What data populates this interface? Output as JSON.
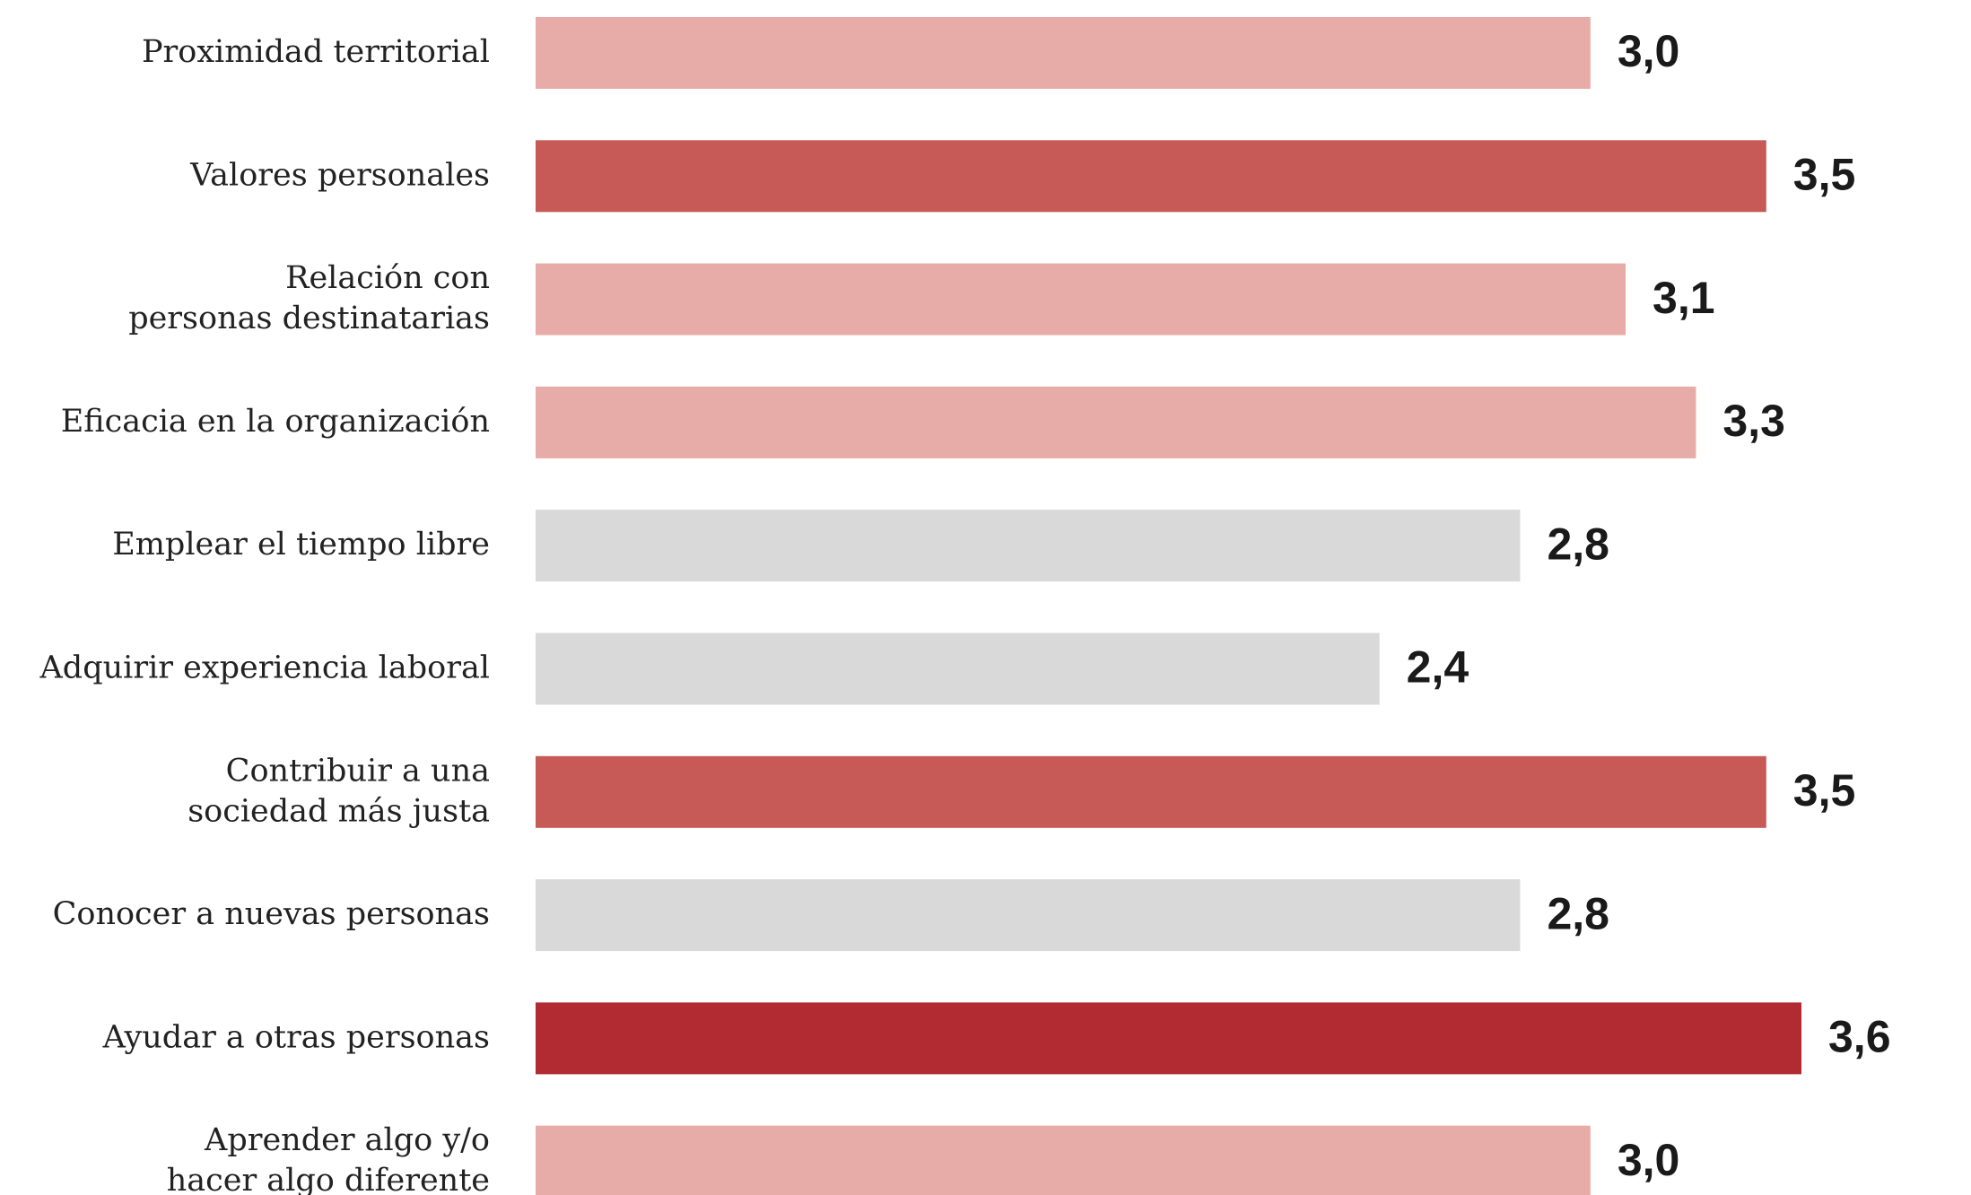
{
  "chart_data": {
    "type": "bar",
    "orientation": "horizontal",
    "categories": [
      [
        "Proximidad territorial"
      ],
      [
        "Valores personales"
      ],
      [
        "Relación con",
        "personas destinatarias"
      ],
      [
        "Eficacia en la organización"
      ],
      [
        "Emplear el tiempo libre"
      ],
      [
        "Adquirir experiencia laboral"
      ],
      [
        "Contribuir a una",
        "sociedad más justa"
      ],
      [
        "Conocer a nuevas personas"
      ],
      [
        "Ayudar a otras personas"
      ],
      [
        "Aprender algo y/o",
        "hacer algo diferente"
      ]
    ],
    "values": [
      3.0,
      3.5,
      3.1,
      3.3,
      2.8,
      2.4,
      3.5,
      2.8,
      3.6,
      3.0
    ],
    "value_labels": [
      "3,0",
      "3,5",
      "3,1",
      "3,3",
      "2,8",
      "2,4",
      "3,5",
      "2,8",
      "3,6",
      "3,0"
    ],
    "bar_colors": [
      "#e8aca8",
      "#c75a56",
      "#e8aca8",
      "#e8aca8",
      "#d9d9d9",
      "#d9d9d9",
      "#c75a56",
      "#d9d9d9",
      "#b22a32",
      "#e8aca8"
    ],
    "xlim": [
      0,
      3.6
    ],
    "grid": false,
    "legend": "none"
  }
}
